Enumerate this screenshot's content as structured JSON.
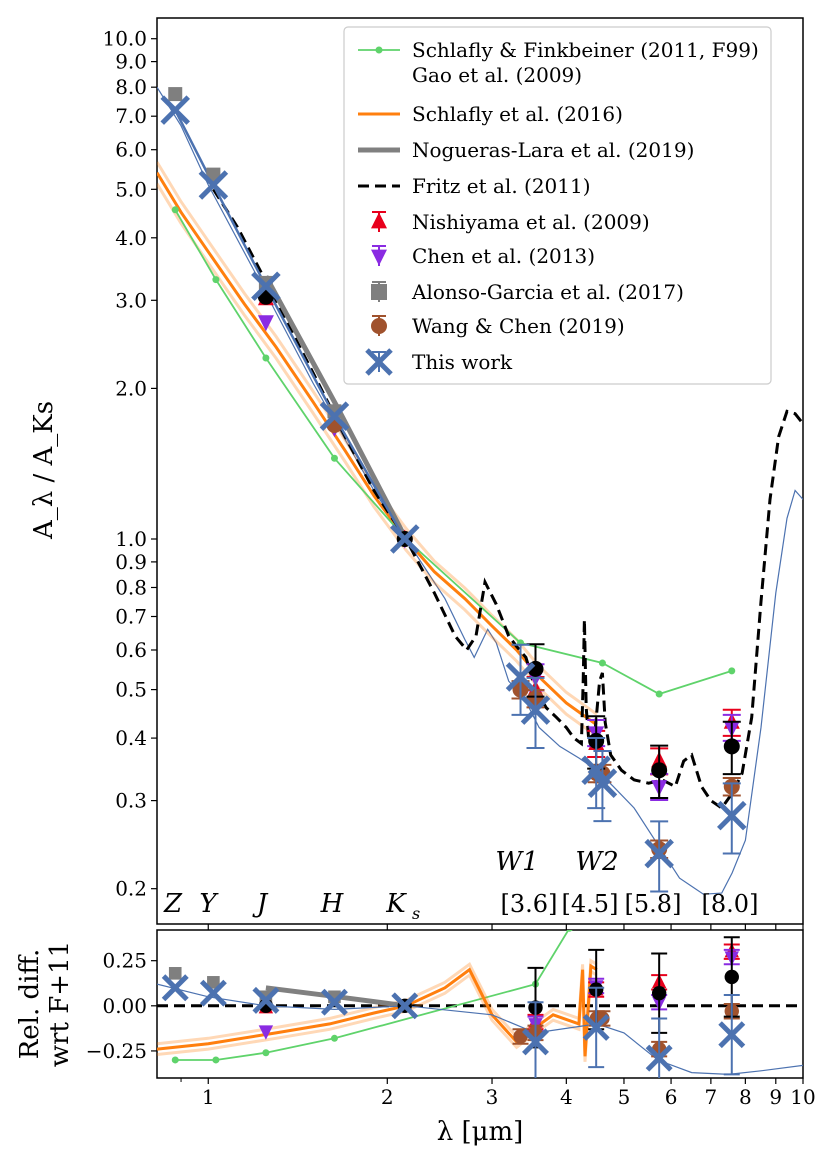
{
  "figure": {
    "ylabel": "A_λ / A_Ks",
    "xlabel": "λ [μm]",
    "lower_ylabel_line1": "Rel. diff.",
    "lower_ylabel_line2": "wrt F+11",
    "x_tick_labels": [
      "1",
      "2",
      "3",
      "4",
      "5",
      "6",
      "7",
      "8",
      "9",
      "10"
    ],
    "y_tick_labels_main": [
      "0.2",
      "0.3",
      "0.4",
      "0.5",
      "0.6",
      "0.7",
      "0.8",
      "0.9",
      "1.0",
      "2.0",
      "3.0",
      "4.0",
      "5.0",
      "6.0",
      "7.0",
      "8.0",
      "9.0",
      "10.0"
    ],
    "y_tick_labels_lower": [
      "0.25",
      "0.00",
      "−0.25"
    ],
    "band_labels": [
      "Z",
      "Y",
      "J",
      "H",
      "K",
      "s"
    ],
    "wise_labels": [
      "W1",
      "W2"
    ],
    "irac_labels": [
      "[3.6]",
      "[4.5]",
      "[5.8]",
      "[8.0]"
    ]
  },
  "colors": {
    "sf11": "#5fd36b",
    "schlafly16": "#ff7f0e",
    "nogueras": "#808080",
    "fritz": "#000000",
    "nishiyama": "#e8001c",
    "chen": "#8a2be2",
    "alonso": "#7f7f7f",
    "wang": "#a0522d",
    "thiswork": "#4c72b0"
  },
  "legend": [
    {
      "label": "Schlafly & Finkbeiner (2011, F99)",
      "key": "sf11"
    },
    {
      "label": "Gao et al. (2009)",
      "key": "gao"
    },
    {
      "label": "Schlafly et al. (2016)",
      "key": "schlafly16"
    },
    {
      "label": "Nogueras-Lara et al. (2019)",
      "key": "nogueras"
    },
    {
      "label": "Fritz et al. (2011)",
      "key": "fritz"
    },
    {
      "label": "Nishiyama et al. (2009)",
      "key": "nishiyama"
    },
    {
      "label": "Chen et al. (2013)",
      "key": "chen"
    },
    {
      "label": "Alonso-Garcia et al. (2017)",
      "key": "alonso"
    },
    {
      "label": "Wang & Chen (2019)",
      "key": "wang"
    },
    {
      "label": "This work",
      "key": "thiswork"
    }
  ],
  "chart_data": {
    "type": "line",
    "xscale": "log",
    "yscale": "log",
    "xlim": [
      0.82,
      10.0
    ],
    "ylim": [
      0.17,
      11.0
    ],
    "lower_ylim": [
      -0.4,
      0.42
    ],
    "series": [
      {
        "name": "Schlafly & Finkbeiner (2011, F99)",
        "key": "sf11",
        "x": [
          0.88,
          1.03,
          1.25,
          1.63,
          2.15,
          3.35,
          4.6,
          5.73,
          7.59
        ],
        "y": [
          4.55,
          3.3,
          2.3,
          1.45,
          1.0,
          0.62,
          0.565,
          0.49,
          0.545
        ]
      },
      {
        "name": "Schlafly et al. (2016)",
        "key": "schlafly16",
        "x": [
          0.82,
          0.9,
          1.0,
          1.15,
          1.3,
          1.5,
          1.7,
          1.9,
          2.15,
          2.4,
          2.7,
          3.0,
          3.3,
          3.6,
          4.0,
          4.5
        ],
        "y": [
          5.4,
          4.5,
          3.75,
          2.95,
          2.42,
          1.88,
          1.5,
          1.22,
          1.0,
          0.86,
          0.76,
          0.67,
          0.6,
          0.53,
          0.47,
          0.425
        ]
      },
      {
        "name": "Nogueras-Lara et al. (2019)",
        "key": "nogueras",
        "x": [
          1.25,
          1.65,
          2.15
        ],
        "y": [
          3.35,
          1.83,
          1.0
        ]
      },
      {
        "name": "Fritz et al. (2011)",
        "key": "fritz",
        "x": [
          1.02,
          1.12,
          1.28,
          1.5,
          1.7,
          1.9,
          2.15,
          2.4,
          2.6,
          2.72,
          2.82,
          2.92,
          3.05,
          3.2,
          3.3,
          3.42,
          3.55,
          3.7,
          3.85,
          4.0,
          4.12,
          4.24,
          4.27,
          4.29,
          4.32,
          4.36,
          4.45,
          4.55,
          4.6,
          4.65,
          4.75,
          4.95,
          5.2,
          5.5,
          5.8,
          6.1,
          6.3,
          6.5,
          6.75,
          7.0,
          7.3,
          7.6,
          7.9,
          8.2,
          8.5,
          8.8,
          9.1,
          9.4,
          9.7,
          10.0
        ],
        "y": [
          5.0,
          4.2,
          3.1,
          2.15,
          1.6,
          1.25,
          1.0,
          0.78,
          0.64,
          0.6,
          0.64,
          0.82,
          0.74,
          0.64,
          0.61,
          0.58,
          0.5,
          0.46,
          0.44,
          0.42,
          0.4,
          0.39,
          0.52,
          0.69,
          0.46,
          0.4,
          0.39,
          0.52,
          0.54,
          0.43,
          0.37,
          0.345,
          0.33,
          0.325,
          0.33,
          0.32,
          0.36,
          0.37,
          0.32,
          0.3,
          0.29,
          0.31,
          0.34,
          0.44,
          0.75,
          1.2,
          1.6,
          1.8,
          1.78,
          1.7
        ]
      },
      {
        "name": "Gao et al. (2009)",
        "key": "gao",
        "x": [
          0.82,
          0.9,
          1.0,
          1.2,
          1.5,
          1.9,
          2.15,
          2.5,
          2.7,
          2.8,
          2.95,
          3.05,
          3.2,
          3.4,
          3.6,
          3.9,
          4.2,
          4.5,
          4.8,
          5.2,
          5.7,
          6.2,
          6.8,
          7.3,
          7.6,
          8.0,
          8.5,
          9.0,
          9.4,
          9.7,
          10.0
        ],
        "y": [
          8.0,
          6.7,
          5.1,
          3.4,
          2.05,
          1.25,
          1.0,
          0.76,
          0.63,
          0.58,
          0.66,
          0.62,
          0.52,
          0.48,
          0.42,
          0.385,
          0.365,
          0.345,
          0.32,
          0.29,
          0.245,
          0.21,
          0.195,
          0.196,
          0.215,
          0.25,
          0.42,
          0.78,
          1.1,
          1.25,
          1.2
        ]
      }
    ],
    "points": [
      {
        "name": "Nishiyama et al. (2009)",
        "key": "nishiyama",
        "x": [
          1.25,
          1.63,
          2.14,
          3.55,
          4.49,
          5.73,
          7.59
        ],
        "y": [
          3.02,
          1.73,
          1.0,
          0.5,
          0.39,
          0.36,
          0.43
        ]
      },
      {
        "name": "Chen et al. (2013)",
        "key": "chen",
        "x": [
          1.25,
          1.63,
          2.14,
          3.55,
          4.49,
          5.73,
          7.59
        ],
        "y": [
          2.72,
          1.67,
          1.0,
          0.53,
          0.41,
          0.32,
          0.42
        ]
      },
      {
        "name": "Alonso-Garcia et al. (2017)",
        "key": "alonso",
        "x": [
          0.88,
          1.02,
          1.25,
          1.63,
          2.14
        ],
        "y": [
          7.75,
          5.35,
          3.25,
          1.8,
          1.0
        ]
      },
      {
        "name": "Wang & Chen (2019)",
        "key": "wang",
        "x": [
          1.63,
          2.14,
          3.35,
          3.55,
          4.5,
          4.6,
          5.73,
          7.59
        ],
        "y": [
          1.69,
          1.0,
          0.5,
          0.48,
          0.34,
          0.34,
          0.24,
          0.32
        ]
      },
      {
        "name": "Fritz et al. (2011) measurements",
        "key": "fritz",
        "x": [
          1.25,
          2.14,
          3.55,
          4.49,
          5.73,
          7.59
        ],
        "y": [
          3.05,
          1.0,
          0.55,
          0.395,
          0.345,
          0.385
        ]
      },
      {
        "name": "This work",
        "key": "thiswork",
        "x": [
          0.88,
          1.02,
          1.25,
          1.63,
          2.14,
          3.35,
          3.55,
          4.49,
          4.6,
          5.73,
          7.59
        ],
        "y": [
          7.2,
          5.1,
          3.2,
          1.76,
          1.0,
          0.53,
          0.455,
          0.345,
          0.325,
          0.235,
          0.28
        ]
      }
    ],
    "diff_series": [
      {
        "name": "Schlafly & Finkbeiner (2011, F99)",
        "key": "sf11",
        "x": [
          0.88,
          1.03,
          1.25,
          1.63,
          3.55,
          4.05
        ],
        "y": [
          -0.3,
          -0.3,
          -0.26,
          -0.18,
          0.12,
          0.43
        ]
      },
      {
        "name": "Schlafly et al. (2016)",
        "key": "schlafly16",
        "x": [
          0.82,
          1.0,
          1.3,
          1.6,
          1.9,
          2.15,
          2.5,
          2.75,
          3.0,
          3.3,
          3.55,
          3.8,
          4.2,
          4.26,
          4.3,
          4.4,
          4.5
        ],
        "y": [
          -0.24,
          -0.21,
          -0.15,
          -0.1,
          -0.04,
          0.0,
          0.1,
          0.2,
          -0.05,
          -0.2,
          -0.12,
          -0.05,
          -0.1,
          0.2,
          -0.28,
          0.22,
          0.2
        ]
      },
      {
        "name": "Nogueras-Lara et al. (2019)",
        "key": "nogueras",
        "x": [
          1.25,
          1.65,
          2.15
        ],
        "y": [
          0.1,
          0.05,
          0.0
        ]
      },
      {
        "name": "Gao et al. (2009)",
        "key": "gao",
        "x": [
          0.82,
          1.0,
          1.25,
          1.63,
          2.15,
          3.0,
          3.55,
          4.5,
          5.0,
          5.7,
          6.5,
          7.5,
          8.5,
          10.0
        ],
        "y": [
          0.12,
          0.05,
          0.0,
          -0.02,
          0.0,
          -0.05,
          -0.15,
          -0.1,
          -0.15,
          -0.3,
          -0.37,
          -0.38,
          -0.36,
          -0.33
        ]
      }
    ],
    "diff_points": [
      {
        "key": "nishiyama",
        "x": [
          1.25,
          3.55,
          4.49,
          5.73,
          7.59
        ],
        "y": [
          -0.01,
          -0.09,
          0.09,
          0.13,
          0.3
        ]
      },
      {
        "key": "chen",
        "x": [
          1.25,
          3.55,
          4.49,
          5.73,
          7.59
        ],
        "y": [
          -0.14,
          -0.1,
          0.11,
          0.02,
          0.27
        ]
      },
      {
        "key": "alonso",
        "x": [
          0.88,
          1.02,
          1.25,
          1.63,
          2.14
        ],
        "y": [
          0.18,
          0.13,
          0.05,
          0.05,
          0.0
        ]
      },
      {
        "key": "wang",
        "x": [
          3.35,
          3.55,
          4.5,
          4.6,
          5.73,
          7.59
        ],
        "y": [
          -0.17,
          -0.15,
          -0.07,
          -0.07,
          -0.24,
          -0.03
        ]
      },
      {
        "key": "fritz",
        "x": [
          1.25,
          2.14,
          3.55,
          4.49,
          5.73,
          7.59
        ],
        "y": [
          0.0,
          0.0,
          -0.01,
          0.09,
          0.07,
          0.16
        ]
      },
      {
        "key": "thiswork",
        "x": [
          0.88,
          1.02,
          1.25,
          1.63,
          2.14,
          3.55,
          4.49,
          5.73,
          7.59
        ],
        "y": [
          0.1,
          0.07,
          0.03,
          0.02,
          0.0,
          -0.2,
          -0.12,
          -0.29,
          -0.16
        ]
      }
    ]
  }
}
